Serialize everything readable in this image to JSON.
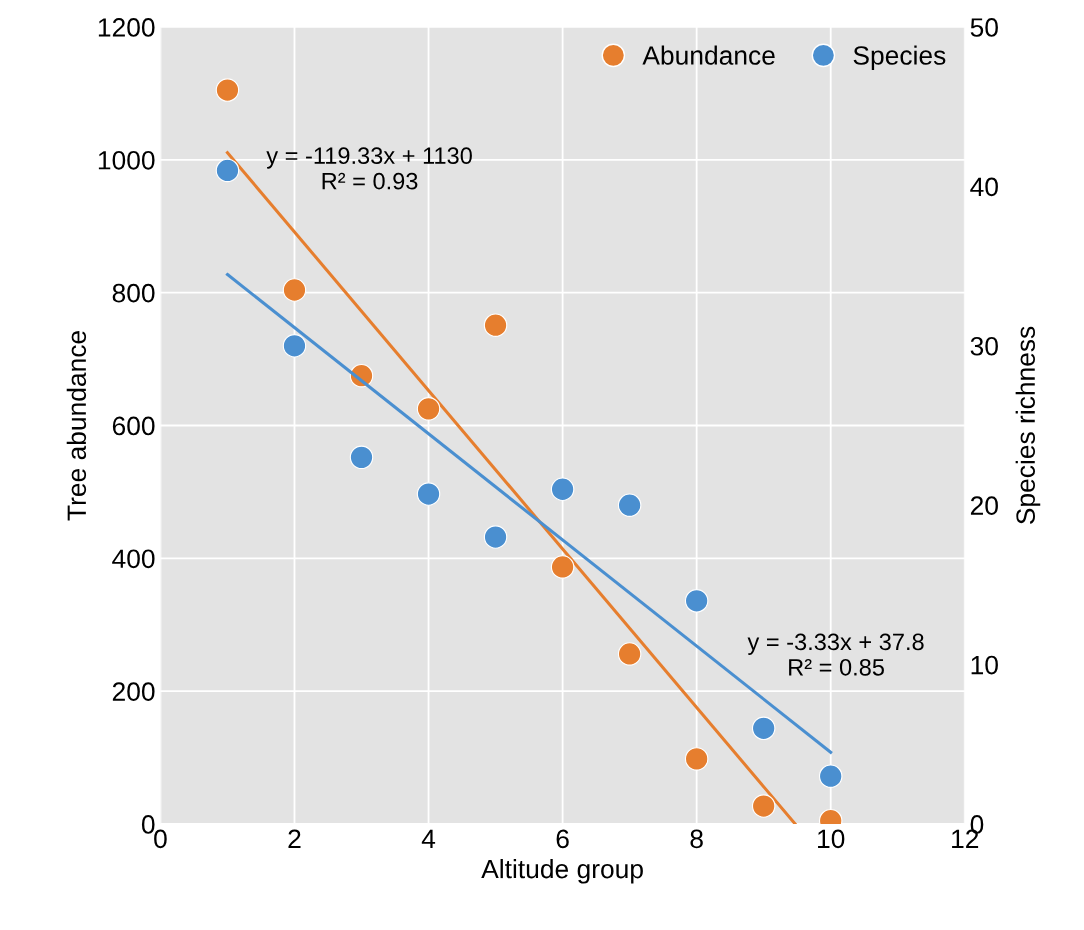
{
  "chart_data": {
    "type": "scatter",
    "xlabel": "Altitude group",
    "ylabel": "Tree abundance",
    "y2label": "Species richness",
    "x": [
      1,
      2,
      3,
      4,
      5,
      6,
      7,
      8,
      9,
      10
    ],
    "series": [
      {
        "name": "Abundance",
        "color": "#e67e2e",
        "values": [
          1105,
          804,
          675,
          625,
          751,
          387,
          256,
          98,
          27,
          5
        ]
      },
      {
        "name": "Species",
        "color": "#4a8fd0",
        "axis": "y2",
        "values": [
          41,
          30,
          23,
          20.7,
          18,
          21,
          20,
          14,
          6,
          3
        ]
      },
      {
        "type": "line",
        "color": "#e67e2e",
        "marker": "none",
        "x": [
          1,
          9.47
        ],
        "values": [
          1010.7,
          0
        ]
      },
      {
        "type": "line",
        "color": "#4a8fd0",
        "marker": "none",
        "axis": "y2",
        "x": [
          1,
          10
        ],
        "values": [
          34.47,
          4.5
        ]
      }
    ],
    "annotations": [
      "y = -119.33x + 1130\nR² = 0.93",
      "y = -3.33x + 37.8\nR² = 0.85"
    ],
    "xlim": [
      0,
      12
    ],
    "xticks": [
      0,
      2,
      4,
      6,
      8,
      10,
      12
    ],
    "ylim": [
      0,
      1200
    ],
    "yticks": [
      0,
      200,
      400,
      600,
      800,
      1000,
      1200
    ],
    "y2lim": [
      0,
      50
    ],
    "y2ticks": [
      0,
      10,
      20,
      30,
      40,
      50
    ],
    "grid": true,
    "legend": "top right",
    "marker": "circle"
  }
}
